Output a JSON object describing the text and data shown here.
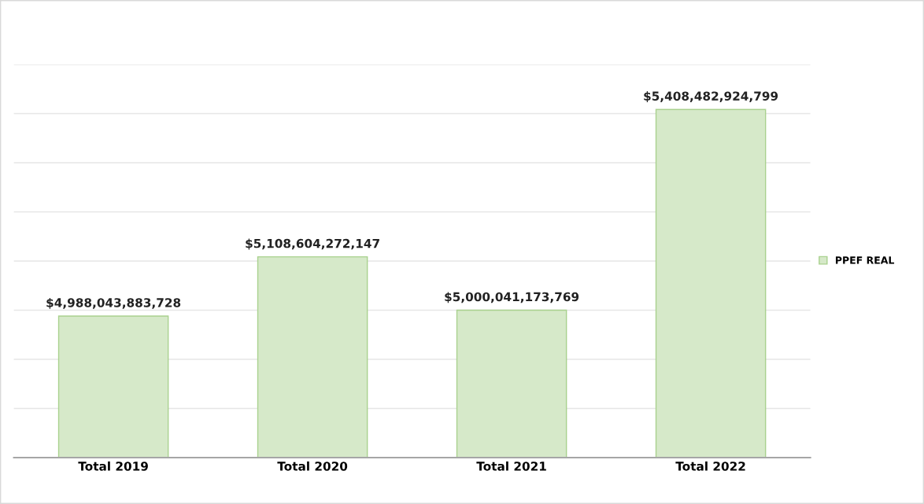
{
  "chart_data": {
    "type": "bar",
    "categories": [
      "Total 2019",
      "Total 2020",
      "Total 2021",
      "Total 2022"
    ],
    "series": [
      {
        "name": "PPEF REAL",
        "color": "#d6e9c9",
        "values": [
          4988043883728,
          5108604272147,
          5000041173769,
          5408482924799
        ],
        "value_labels": [
          "$4,988,043,883,728",
          "$5,108,604,272,147",
          "$5,000,041,173,769",
          "$5,408,482,924,799"
        ]
      }
    ],
    "ylim": [
      4700000000000,
      5500000000000
    ],
    "yticks": [
      {
        "value": 4700000000000,
        "label": null
      },
      {
        "value": 4800000000000,
        "label": null
      },
      {
        "value": 4900000000000,
        "label": null
      },
      {
        "value": 5000000000000,
        "label": null
      },
      {
        "value": 5100000000000,
        "label": null
      },
      {
        "value": 5200000000000,
        "label": null
      },
      {
        "value": 5300000000000,
        "label": null
      },
      {
        "value": 5400000000000,
        "label": null
      },
      {
        "value": 5500000000000,
        "label": null
      }
    ],
    "grid": "y",
    "legend": "right",
    "tick_labels": "x"
  }
}
